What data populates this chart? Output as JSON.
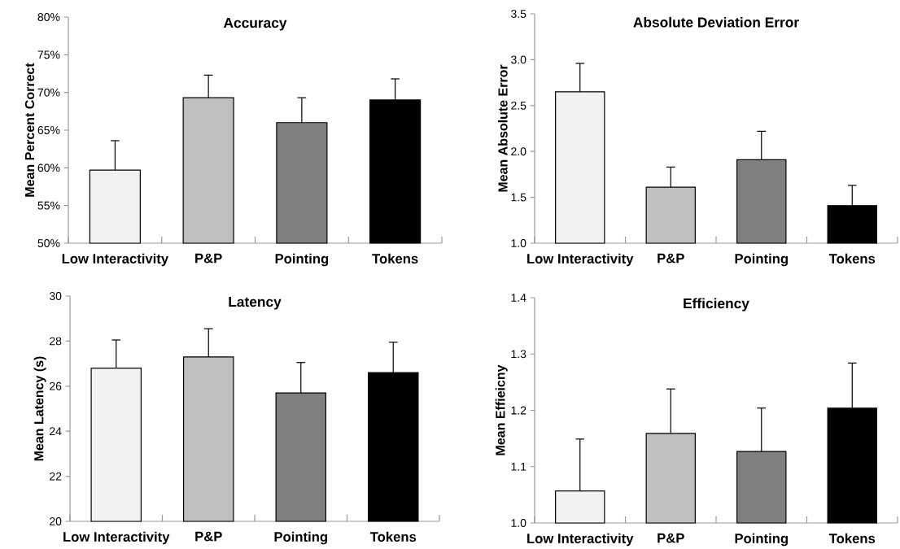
{
  "chart_data": [
    {
      "type": "bar",
      "title": "Accuracy",
      "ylabel": "Mean Percent Correct",
      "categories": [
        "Low Interactivity",
        "P&P",
        "Pointing",
        "Tokens"
      ],
      "values": [
        59.7,
        69.3,
        66.0,
        69.0
      ],
      "colors": [
        "#f2f2f2",
        "#bfbfbf",
        "#808080",
        "#000000"
      ],
      "errors": [
        [
          59.7,
          63.6
        ],
        [
          69.3,
          72.3
        ],
        [
          66.0,
          69.3
        ],
        [
          69.0,
          71.8
        ]
      ],
      "ylim": [
        50,
        80
      ],
      "yticks": [
        {
          "value": 50,
          "label": "50%"
        },
        {
          "value": 55,
          "label": "55%"
        },
        {
          "value": 60,
          "label": "60%"
        },
        {
          "value": 65,
          "label": "65%"
        },
        {
          "value": 70,
          "label": "70%"
        },
        {
          "value": 75,
          "label": "75%"
        },
        {
          "value": 80,
          "label": "80%"
        }
      ]
    },
    {
      "type": "bar",
      "title": "Absolute Deviation Error",
      "ylabel": "Mean Absolute Error",
      "categories": [
        "Low Interactivity",
        "P&P",
        "Pointing",
        "Tokens"
      ],
      "values": [
        2.65,
        1.61,
        1.91,
        1.41
      ],
      "colors": [
        "#f2f2f2",
        "#bfbfbf",
        "#808080",
        "#000000"
      ],
      "errors": [
        [
          2.65,
          2.96
        ],
        [
          1.61,
          1.83
        ],
        [
          1.91,
          2.22
        ],
        [
          1.41,
          1.63
        ]
      ],
      "ylim": [
        1.0,
        3.5
      ],
      "yticks": [
        {
          "value": 1.0,
          "label": "1.0"
        },
        {
          "value": 1.5,
          "label": "1.5"
        },
        {
          "value": 2.0,
          "label": "2.0"
        },
        {
          "value": 2.5,
          "label": "2.5"
        },
        {
          "value": 3.0,
          "label": "3.0"
        },
        {
          "value": 3.5,
          "label": "3.5"
        }
      ]
    },
    {
      "type": "bar",
      "title": "Latency",
      "ylabel": "Mean Latency (s)",
      "categories": [
        "Low Interactivity",
        "P&P",
        "Pointing",
        "Tokens"
      ],
      "values": [
        26.8,
        27.3,
        25.7,
        26.6
      ],
      "colors": [
        "#f2f2f2",
        "#bfbfbf",
        "#808080",
        "#000000"
      ],
      "errors": [
        [
          26.8,
          28.05
        ],
        [
          27.3,
          28.55
        ],
        [
          25.7,
          27.05
        ],
        [
          26.6,
          27.95
        ]
      ],
      "ylim": [
        20,
        30
      ],
      "yticks": [
        20,
        22,
        24,
        26,
        28,
        30
      ]
    },
    {
      "type": "bar",
      "title": "Efficiency",
      "ylabel": "Mean Effieicny",
      "categories": [
        "Low Interactivity",
        "P&P",
        "Pointing",
        "Tokens"
      ],
      "values": [
        1.057,
        1.159,
        1.127,
        1.204
      ],
      "colors": [
        "#f2f2f2",
        "#bfbfbf",
        "#808080",
        "#000000"
      ],
      "errors": [
        [
          1.057,
          1.149
        ],
        [
          1.159,
          1.238
        ],
        [
          1.127,
          1.204
        ],
        [
          1.204,
          1.284
        ]
      ],
      "ylim": [
        1.0,
        1.4
      ],
      "yticks": [
        {
          "value": 1.0,
          "label": "1.0"
        },
        {
          "value": 1.1,
          "label": "1.1"
        },
        {
          "value": 1.2,
          "label": "1.2"
        },
        {
          "value": 1.3,
          "label": "1.3"
        },
        {
          "value": 1.4,
          "label": "1.4"
        }
      ]
    }
  ]
}
